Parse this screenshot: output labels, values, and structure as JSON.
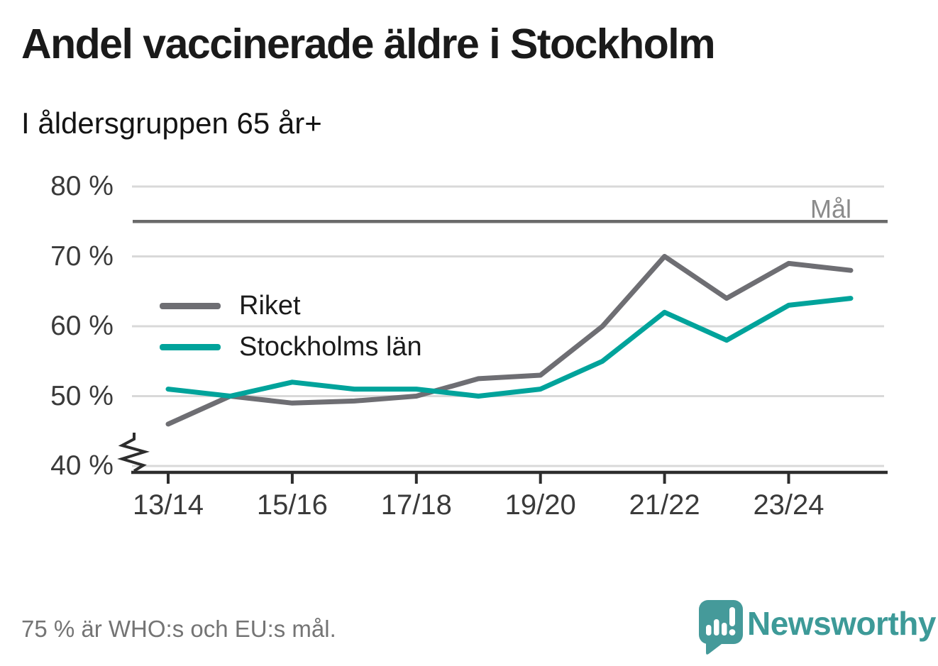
{
  "title": "Andel vaccinerade äldre i Stockholm",
  "subtitle": "I åldersgruppen 65 år+",
  "footnote": "75 % är WHO:s och EU:s mål.",
  "brand": {
    "name": "Newsworthy",
    "color": "#3d9a98"
  },
  "chart_data": {
    "type": "line",
    "unit": "%",
    "categories": [
      "13/14",
      "14/15",
      "15/16",
      "16/17",
      "17/18",
      "18/19",
      "19/20",
      "20/21",
      "21/22",
      "22/23",
      "23/24",
      "24/25"
    ],
    "series": [
      {
        "name": "Riket",
        "color": "#6e6e73",
        "values": [
          46,
          50,
          49,
          49.3,
          50,
          52.5,
          53,
          60,
          70,
          64,
          69,
          68
        ]
      },
      {
        "name": "Stockholms län",
        "color": "#00a39b",
        "values": [
          51,
          50,
          52,
          51,
          51,
          50,
          51,
          55,
          62,
          58,
          63,
          64
        ]
      }
    ],
    "goal_line": {
      "value": 75,
      "label": "Mål",
      "color": "#6a6a6a"
    },
    "y_axis": {
      "ticks": [
        {
          "value": 80,
          "label": "80 %"
        },
        {
          "value": 70,
          "label": "70 %"
        },
        {
          "value": 60,
          "label": "60 %"
        },
        {
          "value": 50,
          "label": "50 %"
        },
        {
          "value": 40,
          "label": "40 %"
        }
      ],
      "axis_break": true,
      "ylim": [
        40,
        82
      ]
    },
    "x_axis": {
      "tick_labels": [
        "13/14",
        "15/16",
        "17/18",
        "19/20",
        "21/22",
        "23/24"
      ]
    },
    "grid": true,
    "legend_position": "inside-upper-left",
    "colors": {
      "gridline": "#d9d9d9",
      "axis": "#2d2d2d",
      "tick_text": "#3a3a3a"
    }
  }
}
